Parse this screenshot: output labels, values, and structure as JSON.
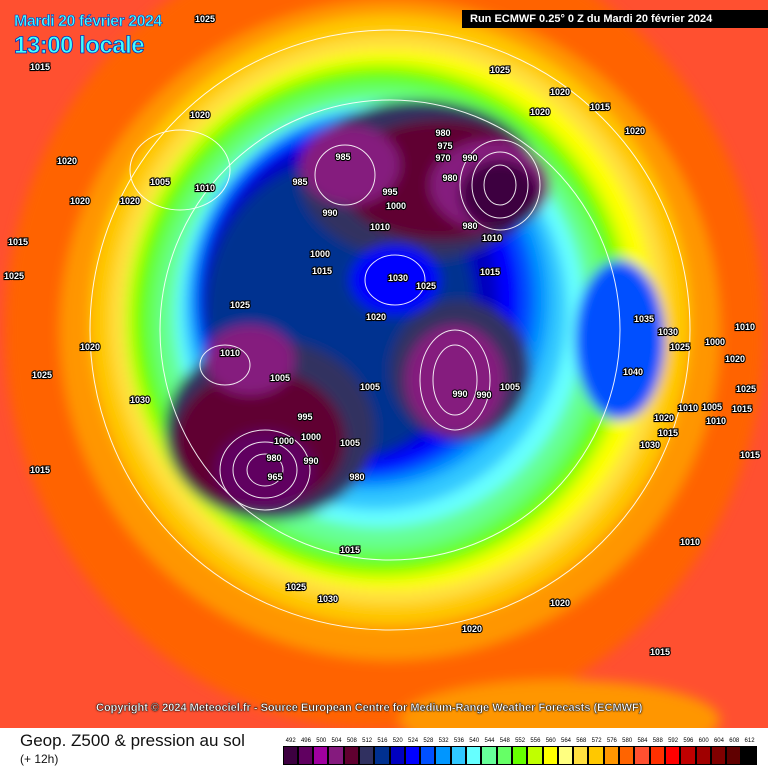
{
  "header": {
    "date": "Mardi 20 février 2024",
    "time": "13:00 locale",
    "run": "Run ECMWF 0.25° 0 Z du Mardi 20 février 2024"
  },
  "copyright": "Copyright © 2024 Meteociel.fr - Source European Centre for Medium-Range Weather Forecasts (ECMWF)",
  "footer": {
    "title": "Geop. Z500 & pression au sol",
    "subtitle": "(+ 12h)"
  },
  "legend": {
    "labels": [
      "492",
      "496",
      "500",
      "504",
      "508",
      "512",
      "516",
      "520",
      "524",
      "528",
      "532",
      "536",
      "540",
      "544",
      "548",
      "552",
      "556",
      "560",
      "564",
      "568",
      "572",
      "576",
      "580",
      "584",
      "588",
      "592",
      "596",
      "600",
      "604",
      "608",
      "612"
    ],
    "colors": [
      "#3d0040",
      "#600060",
      "#a000a0",
      "#851a7e",
      "#600030",
      "#303060",
      "#003090",
      "#0000c0",
      "#0000ff",
      "#0050ff",
      "#0096ff",
      "#30c8ff",
      "#66ffff",
      "#66ff99",
      "#66ff66",
      "#66ff00",
      "#c0ff00",
      "#ffff00",
      "#ffff80",
      "#ffe040",
      "#ffc800",
      "#ff9600",
      "#ff6400",
      "#ff5030",
      "#ff3000",
      "#ff0000",
      "#c00000",
      "#a00000",
      "#800000",
      "#600000",
      "#000000"
    ]
  },
  "pressure_labels": [
    "1025",
    "1015",
    "1025",
    "1020",
    "1020",
    "1020",
    "1020",
    "1005",
    "1010",
    "1020",
    "1020",
    "1020",
    "1015",
    "1025",
    "1015",
    "985",
    "980",
    "985",
    "990",
    "995",
    "1000",
    "980",
    "975",
    "970",
    "990",
    "980",
    "1010",
    "1000",
    "1010",
    "1015",
    "1030",
    "1025",
    "1020",
    "1015",
    "1025",
    "1010",
    "1005",
    "1005",
    "1030",
    "1020",
    "1025",
    "990",
    "990",
    "1005",
    "1015",
    "1035",
    "1030",
    "1040",
    "1025",
    "1020",
    "1000",
    "1010",
    "1010",
    "1015",
    "1030",
    "1025",
    "1020",
    "1005",
    "965",
    "980",
    "990",
    "1000",
    "1005",
    "980",
    "1015",
    "1030",
    "1025",
    "1020",
    "1020",
    "1010",
    "1015",
    "1015",
    "1015",
    "995",
    "1000",
    "1010"
  ]
}
